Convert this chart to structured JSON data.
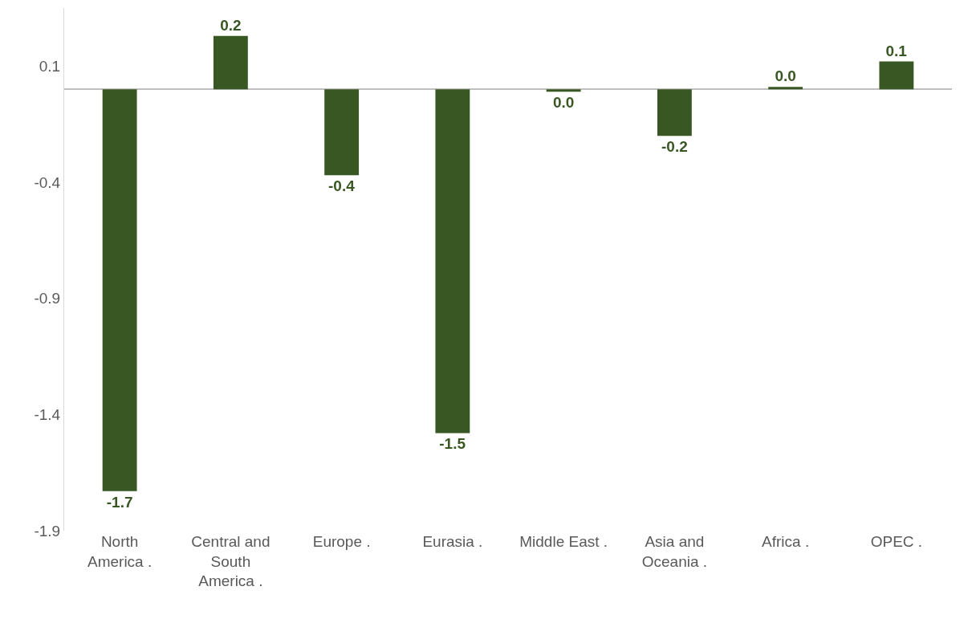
{
  "chart_data": {
    "type": "bar",
    "categories": [
      "North America .",
      "Central and South America .",
      "Europe .",
      "Eurasia .",
      "Middle East .",
      "Asia and Oceania .",
      "Africa .",
      "OPEC ."
    ],
    "values": [
      -1.73,
      0.23,
      -0.37,
      -1.48,
      -0.01,
      -0.2,
      0.01,
      0.12
    ],
    "value_labels": [
      "-1.7",
      "0.2",
      "-0.4",
      "-1.5",
      "0.0",
      "-0.2",
      "0.0",
      "0.1"
    ],
    "color": "#385723",
    "ylim": [
      -1.9,
      0.35
    ],
    "yticks": [
      0.1,
      -0.4,
      -0.9,
      -1.4,
      -1.9
    ],
    "grid": false
  }
}
